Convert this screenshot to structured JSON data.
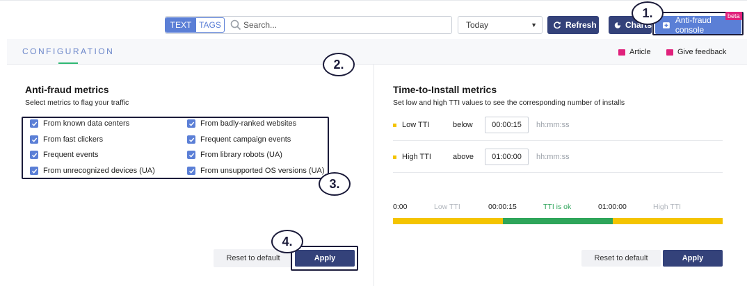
{
  "toolbar": {
    "mode_text": "TEXT",
    "mode_tags": "TAGS",
    "search_placeholder": "Search...",
    "date_range": "Today",
    "refresh_label": "Refresh",
    "charts_label": "Charts",
    "antifraud_label": "Anti-fraud console",
    "beta_badge": "beta"
  },
  "annotations": [
    "1.",
    "2.",
    "3.",
    "4."
  ],
  "config": {
    "title": "CONFIGURATION",
    "article_label": "Article",
    "feedback_label": "Give feedback"
  },
  "antifraud": {
    "title": "Anti-fraud metrics",
    "subtitle": "Select metrics to flag your traffic",
    "metrics": [
      {
        "label": "From known data centers",
        "checked": true
      },
      {
        "label": "From fast clickers",
        "checked": true
      },
      {
        "label": "Frequent events",
        "checked": true
      },
      {
        "label": "From unrecognized devices (UA)",
        "checked": true
      },
      {
        "label": "From badly-ranked websites",
        "checked": true
      },
      {
        "label": "Frequent campaign events",
        "checked": true
      },
      {
        "label": "From library robots (UA)",
        "checked": true
      },
      {
        "label": "From unsupported OS versions (UA)",
        "checked": true
      }
    ],
    "reset_label": "Reset to default",
    "apply_label": "Apply"
  },
  "tti": {
    "title": "Time-to-Install metrics",
    "subtitle": "Set low and high TTI values to see the corresponding number of installs",
    "low": {
      "label": "Low TTI",
      "op": "below",
      "value": "00:00:15",
      "hint": "hh:mm:ss"
    },
    "high": {
      "label": "High TTI",
      "op": "above",
      "value": "01:00:00",
      "hint": "hh:mm:ss"
    },
    "scale": {
      "start": "0:00",
      "low_label": "Low TTI",
      "low_value": "00:00:15",
      "ok_label": "TTI is ok",
      "high_value": "01:00:00",
      "high_label": "High TTI"
    },
    "colors": {
      "low": "#f4c400",
      "ok": "#2ea55a",
      "high": "#f4c400"
    },
    "reset_label": "Reset to default",
    "apply_label": "Apply"
  }
}
